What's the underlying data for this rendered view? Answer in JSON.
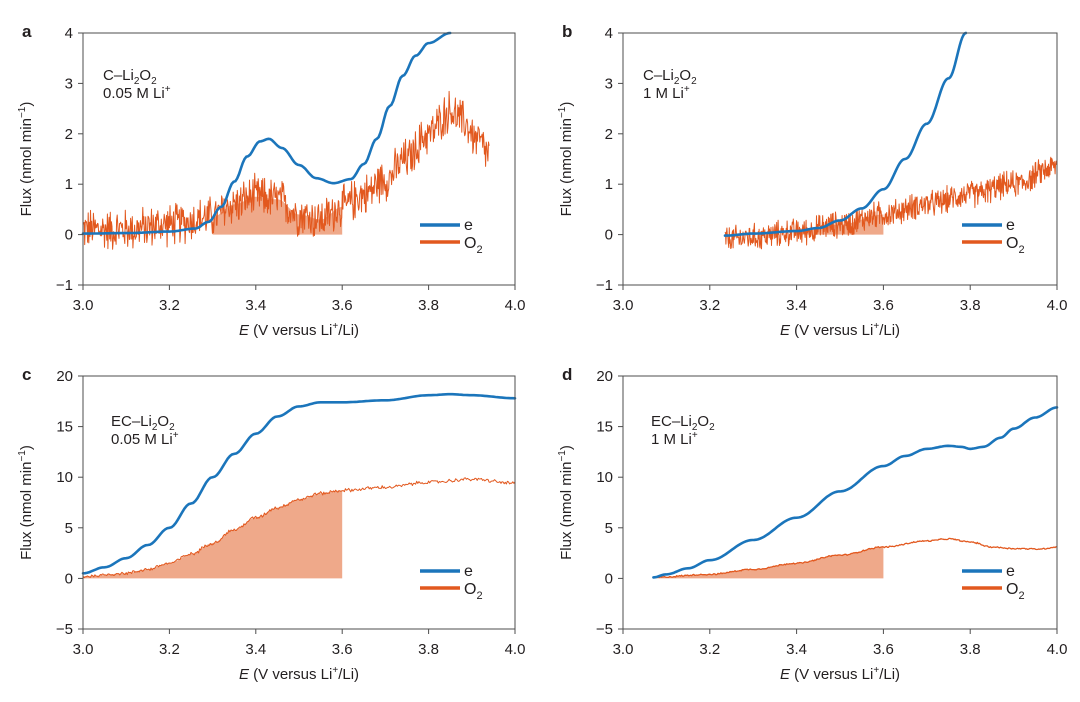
{
  "colors": {
    "e": "#1b75bb",
    "o2": "#e2581e",
    "shade": "#efa98a",
    "axis": "#4d4d4d"
  },
  "chart_data": [
    {
      "panel": "a",
      "type": "line",
      "annotation": [
        "C–Li",
        "2",
        "O",
        "2",
        "0.05 M Li",
        "+"
      ],
      "annotation_text": "C–Li2O2, 0.05 M Li+",
      "xlabel": "E (V versus Li+/Li)",
      "ylabel": "Flux (nmol min−1)",
      "xlim": [
        3.0,
        4.0
      ],
      "ylim": [
        -1,
        4
      ],
      "xticks": [
        "3.0",
        "3.2",
        "3.4",
        "3.6",
        "3.8",
        "4.0"
      ],
      "yticks": [
        "−1",
        "0",
        "1",
        "2",
        "3",
        "4"
      ],
      "ytick_values": [
        -1,
        0,
        1,
        2,
        3,
        4
      ],
      "legend": [
        "e",
        "O2"
      ],
      "legend_position": "bottom-right",
      "noise": 0.35,
      "shade_range": [
        3.3,
        3.6
      ],
      "series": [
        {
          "name": "e",
          "x": [
            3.0,
            3.1,
            3.2,
            3.26,
            3.29,
            3.32,
            3.35,
            3.38,
            3.41,
            3.43,
            3.46,
            3.5,
            3.54,
            3.58,
            3.62,
            3.65,
            3.68,
            3.71,
            3.74,
            3.77,
            3.8,
            3.85
          ],
          "y": [
            0.02,
            0.03,
            0.06,
            0.12,
            0.25,
            0.55,
            1.05,
            1.55,
            1.85,
            1.9,
            1.72,
            1.38,
            1.12,
            1.02,
            1.1,
            1.4,
            1.9,
            2.55,
            3.15,
            3.55,
            3.8,
            4.0
          ]
        },
        {
          "name": "O2",
          "x": [
            3.0,
            3.1,
            3.2,
            3.3,
            3.35,
            3.4,
            3.45,
            3.5,
            3.55,
            3.6,
            3.65,
            3.7,
            3.75,
            3.8,
            3.85,
            3.88,
            3.91,
            3.94
          ],
          "y": [
            0.1,
            0.1,
            0.2,
            0.35,
            0.6,
            0.75,
            0.7,
            0.4,
            0.3,
            0.55,
            0.8,
            1.1,
            1.5,
            2.0,
            2.45,
            2.25,
            1.9,
            1.6
          ]
        }
      ]
    },
    {
      "panel": "b",
      "type": "line",
      "annotation": [
        "C–Li",
        "2",
        "O",
        "2",
        "1 M Li",
        "+"
      ],
      "annotation_text": "C–Li2O2, 1 M Li+",
      "xlabel": "E (V versus Li+/Li)",
      "ylabel": "Flux (nmol min−1)",
      "xlim": [
        3.0,
        4.0
      ],
      "ylim": [
        -1,
        4
      ],
      "xticks": [
        "3.0",
        "3.2",
        "3.4",
        "3.6",
        "3.8",
        "4.0"
      ],
      "yticks": [
        "−1",
        "0",
        "1",
        "2",
        "3",
        "4"
      ],
      "ytick_values": [
        -1,
        0,
        1,
        2,
        3,
        4
      ],
      "legend": [
        "e",
        "O2"
      ],
      "legend_position": "bottom-right",
      "noise": 0.22,
      "shade_range": [
        3.4,
        3.6
      ],
      "series": [
        {
          "name": "e",
          "x": [
            3.235,
            3.3,
            3.4,
            3.45,
            3.5,
            3.55,
            3.6,
            3.65,
            3.7,
            3.75,
            3.79
          ],
          "y": [
            -0.02,
            0.02,
            0.07,
            0.13,
            0.28,
            0.52,
            0.9,
            1.5,
            2.2,
            3.1,
            4.0
          ]
        },
        {
          "name": "O2",
          "x": [
            3.235,
            3.3,
            3.4,
            3.5,
            3.6,
            3.7,
            3.8,
            3.9,
            4.0
          ],
          "y": [
            -0.1,
            -0.05,
            0.05,
            0.2,
            0.4,
            0.6,
            0.8,
            1.0,
            1.35
          ]
        }
      ]
    },
    {
      "panel": "c",
      "type": "line",
      "annotation": [
        "EC–Li",
        "2",
        "O",
        "2",
        "0.05 M Li",
        "+"
      ],
      "annotation_text": "EC–Li2O2, 0.05 M Li+",
      "xlabel": "E (V versus Li+/Li)",
      "ylabel": "Flux (nmol min−1)",
      "xlim": [
        3.0,
        4.0
      ],
      "ylim": [
        -5,
        20
      ],
      "xticks": [
        "3.0",
        "3.2",
        "3.4",
        "3.6",
        "3.8",
        "4.0"
      ],
      "yticks": [
        "−5",
        "0",
        "5",
        "10",
        "15",
        "20"
      ],
      "ytick_values": [
        -5,
        0,
        5,
        10,
        15,
        20
      ],
      "legend": [
        "e",
        "O2"
      ],
      "legend_position": "bottom-right",
      "noise": 0.15,
      "shade_range": [
        3.0,
        3.6
      ],
      "series": [
        {
          "name": "e",
          "x": [
            3.0,
            3.05,
            3.1,
            3.15,
            3.2,
            3.25,
            3.3,
            3.35,
            3.4,
            3.45,
            3.5,
            3.55,
            3.6,
            3.7,
            3.8,
            3.85,
            3.9,
            4.0
          ],
          "y": [
            0.5,
            1.1,
            2.0,
            3.3,
            5.0,
            7.4,
            10.0,
            12.3,
            14.3,
            16.0,
            17.0,
            17.4,
            17.4,
            17.6,
            18.1,
            18.2,
            18.1,
            17.8
          ]
        },
        {
          "name": "O2",
          "x": [
            3.0,
            3.1,
            3.15,
            3.2,
            3.25,
            3.3,
            3.35,
            3.4,
            3.45,
            3.5,
            3.55,
            3.6,
            3.7,
            3.8,
            3.9,
            4.0
          ],
          "y": [
            0.2,
            0.5,
            0.9,
            1.5,
            2.4,
            3.5,
            4.8,
            6.0,
            7.0,
            7.8,
            8.4,
            8.7,
            9.0,
            9.5,
            9.8,
            9.4
          ]
        }
      ]
    },
    {
      "panel": "d",
      "type": "line",
      "annotation": [
        "EC–Li",
        "2",
        "O",
        "2",
        "1 M Li",
        "+"
      ],
      "annotation_text": "EC–Li2O2, 1 M Li+",
      "xlabel": "E (V versus Li+/Li)",
      "ylabel": "Flux (nmol min−1)",
      "xlim": [
        3.0,
        4.0
      ],
      "ylim": [
        -5,
        20
      ],
      "xticks": [
        "3.0",
        "3.2",
        "3.4",
        "3.6",
        "3.8",
        "4.0"
      ],
      "yticks": [
        "−5",
        "0",
        "5",
        "10",
        "15",
        "20"
      ],
      "ytick_values": [
        -5,
        0,
        5,
        10,
        15,
        20
      ],
      "legend": [
        "e",
        "O2"
      ],
      "legend_position": "bottom-right",
      "noise": 0.06,
      "shade_range": [
        3.07,
        3.6
      ],
      "series": [
        {
          "name": "e",
          "x": [
            3.07,
            3.1,
            3.15,
            3.2,
            3.3,
            3.4,
            3.5,
            3.6,
            3.65,
            3.7,
            3.75,
            3.78,
            3.8,
            3.83,
            3.87,
            3.9,
            3.95,
            4.0
          ],
          "y": [
            0.1,
            0.4,
            1.0,
            1.8,
            3.8,
            6.0,
            8.6,
            11.1,
            12.1,
            12.8,
            13.1,
            13.0,
            12.8,
            13.0,
            13.9,
            14.8,
            15.9,
            16.9
          ]
        },
        {
          "name": "O2",
          "x": [
            3.07,
            3.2,
            3.3,
            3.4,
            3.5,
            3.6,
            3.7,
            3.75,
            3.8,
            3.85,
            3.9,
            3.96,
            4.0
          ],
          "y": [
            0.1,
            0.4,
            0.9,
            1.5,
            2.3,
            3.1,
            3.7,
            3.9,
            3.6,
            3.1,
            2.95,
            2.9,
            3.1
          ]
        }
      ]
    }
  ]
}
